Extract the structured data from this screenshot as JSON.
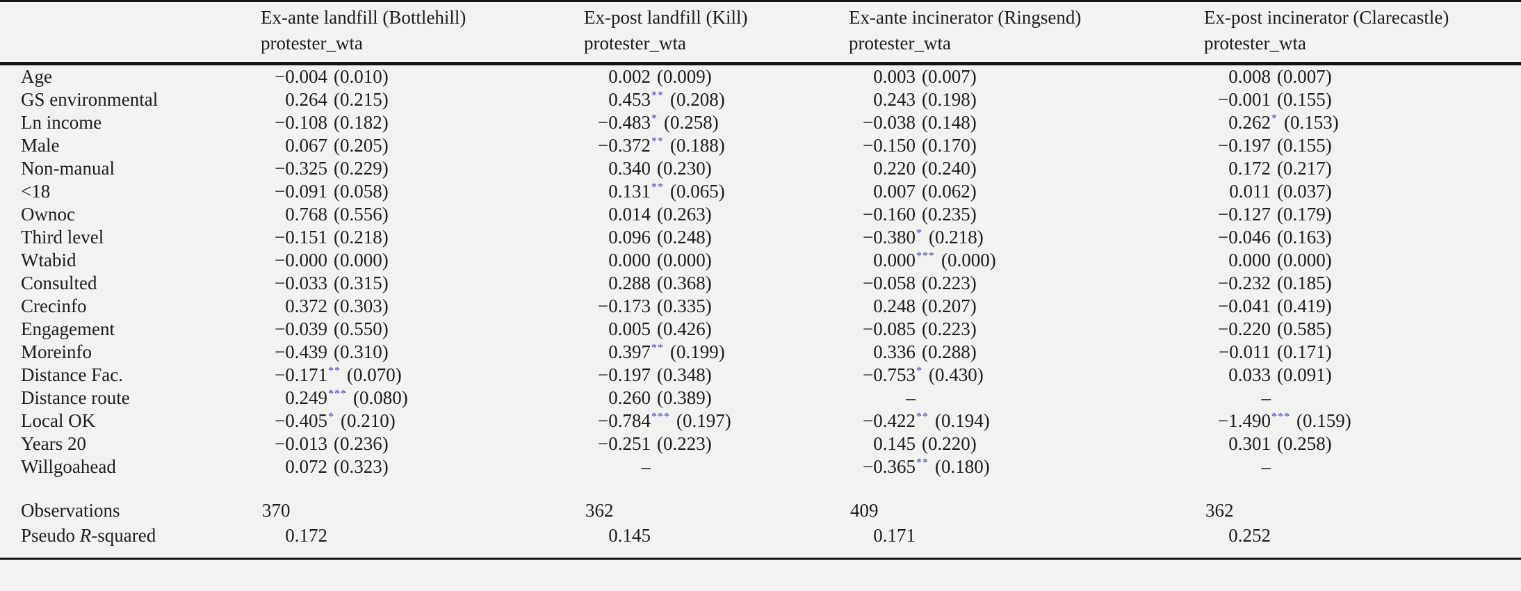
{
  "table": {
    "columns": [
      {
        "title": "Ex-ante landfill (Bottlehill)",
        "subtitle": "protester_wta"
      },
      {
        "title": "Ex-post landfill (Kill)",
        "subtitle": "protester_wta"
      },
      {
        "title": "Ex-ante incinerator (Ringsend)",
        "subtitle": "protester_wta"
      },
      {
        "title": "Ex-post incinerator (Clarecastle)",
        "subtitle": "protester_wta"
      }
    ],
    "rows": [
      {
        "label": "Age",
        "cells": [
          {
            "coef": "−0.004",
            "stars": "",
            "se": "(0.010)"
          },
          {
            "coef": "0.002",
            "stars": "",
            "se": "(0.009)"
          },
          {
            "coef": "0.003",
            "stars": "",
            "se": "(0.007)"
          },
          {
            "coef": "0.008",
            "stars": "",
            "se": "(0.007)"
          }
        ]
      },
      {
        "label": "GS environmental",
        "cells": [
          {
            "coef": "0.264",
            "stars": "",
            "se": "(0.215)"
          },
          {
            "coef": "0.453",
            "stars": "**",
            "se": "(0.208)"
          },
          {
            "coef": "0.243",
            "stars": "",
            "se": "(0.198)"
          },
          {
            "coef": "−0.001",
            "stars": "",
            "se": "(0.155)"
          }
        ]
      },
      {
        "label": "Ln income",
        "cells": [
          {
            "coef": "−0.108",
            "stars": "",
            "se": "(0.182)"
          },
          {
            "coef": "−0.483",
            "stars": "*",
            "se": "(0.258)"
          },
          {
            "coef": "−0.038",
            "stars": "",
            "se": "(0.148)"
          },
          {
            "coef": "0.262",
            "stars": "*",
            "se": "(0.153)"
          }
        ]
      },
      {
        "label": "Male",
        "cells": [
          {
            "coef": "0.067",
            "stars": "",
            "se": "(0.205)"
          },
          {
            "coef": "−0.372",
            "stars": "**",
            "se": "(0.188)"
          },
          {
            "coef": "−0.150",
            "stars": "",
            "se": "(0.170)"
          },
          {
            "coef": "−0.197",
            "stars": "",
            "se": "(0.155)"
          }
        ]
      },
      {
        "label": "Non-manual",
        "cells": [
          {
            "coef": "−0.325",
            "stars": "",
            "se": "(0.229)"
          },
          {
            "coef": "0.340",
            "stars": "",
            "se": "(0.230)"
          },
          {
            "coef": "0.220",
            "stars": "",
            "se": "(0.240)"
          },
          {
            "coef": "0.172",
            "stars": "",
            "se": "(0.217)"
          }
        ]
      },
      {
        "label": "<18",
        "cells": [
          {
            "coef": "−0.091",
            "stars": "",
            "se": "(0.058)"
          },
          {
            "coef": "0.131",
            "stars": "**",
            "se": "(0.065)"
          },
          {
            "coef": "0.007",
            "stars": "",
            "se": "(0.062)"
          },
          {
            "coef": "0.011",
            "stars": "",
            "se": "(0.037)"
          }
        ]
      },
      {
        "label": "Ownoc",
        "cells": [
          {
            "coef": "0.768",
            "stars": "",
            "se": "(0.556)"
          },
          {
            "coef": "0.014",
            "stars": "",
            "se": "(0.263)"
          },
          {
            "coef": "−0.160",
            "stars": "",
            "se": "(0.235)"
          },
          {
            "coef": "−0.127",
            "stars": "",
            "se": "(0.179)"
          }
        ]
      },
      {
        "label": "Third level",
        "cells": [
          {
            "coef": "−0.151",
            "stars": "",
            "se": "(0.218)"
          },
          {
            "coef": "0.096",
            "stars": "",
            "se": "(0.248)"
          },
          {
            "coef": "−0.380",
            "stars": "*",
            "se": "(0.218)"
          },
          {
            "coef": "−0.046",
            "stars": "",
            "se": "(0.163)"
          }
        ]
      },
      {
        "label": "Wtabid",
        "cells": [
          {
            "coef": "−0.000",
            "stars": "",
            "se": "(0.000)"
          },
          {
            "coef": "0.000",
            "stars": "",
            "se": "(0.000)"
          },
          {
            "coef": "0.000",
            "stars": "***",
            "se": "(0.000)"
          },
          {
            "coef": "0.000",
            "stars": "",
            "se": "(0.000)"
          }
        ]
      },
      {
        "label": "Consulted",
        "cells": [
          {
            "coef": "−0.033",
            "stars": "",
            "se": "(0.315)"
          },
          {
            "coef": "0.288",
            "stars": "",
            "se": "(0.368)"
          },
          {
            "coef": "−0.058",
            "stars": "",
            "se": "(0.223)"
          },
          {
            "coef": "−0.232",
            "stars": "",
            "se": "(0.185)"
          }
        ]
      },
      {
        "label": "Crecinfo",
        "cells": [
          {
            "coef": "0.372",
            "stars": "",
            "se": "(0.303)"
          },
          {
            "coef": "−0.173",
            "stars": "",
            "se": "(0.335)"
          },
          {
            "coef": "0.248",
            "stars": "",
            "se": "(0.207)"
          },
          {
            "coef": "−0.041",
            "stars": "",
            "se": "(0.419)"
          }
        ]
      },
      {
        "label": "Engagement",
        "cells": [
          {
            "coef": "−0.039",
            "stars": "",
            "se": "(0.550)"
          },
          {
            "coef": "0.005",
            "stars": "",
            "se": "(0.426)"
          },
          {
            "coef": "−0.085",
            "stars": "",
            "se": "(0.223)"
          },
          {
            "coef": "−0.220",
            "stars": "",
            "se": "(0.585)"
          }
        ]
      },
      {
        "label": "Moreinfo",
        "cells": [
          {
            "coef": "−0.439",
            "stars": "",
            "se": "(0.310)"
          },
          {
            "coef": "0.397",
            "stars": "**",
            "se": "(0.199)"
          },
          {
            "coef": "0.336",
            "stars": "",
            "se": "(0.288)"
          },
          {
            "coef": "−0.011",
            "stars": "",
            "se": "(0.171)"
          }
        ]
      },
      {
        "label": "Distance Fac.",
        "cells": [
          {
            "coef": "−0.171",
            "stars": "**",
            "se": "(0.070)"
          },
          {
            "coef": "−0.197",
            "stars": "",
            "se": "(0.348)"
          },
          {
            "coef": "−0.753",
            "stars": "*",
            "se": "(0.430)"
          },
          {
            "coef": "0.033",
            "stars": "",
            "se": "(0.091)"
          }
        ]
      },
      {
        "label": "Distance route",
        "cells": [
          {
            "coef": "0.249",
            "stars": "***",
            "se": "(0.080)"
          },
          {
            "coef": "0.260",
            "stars": "",
            "se": "(0.389)"
          },
          {
            "coef": "–",
            "stars": "",
            "se": ""
          },
          {
            "coef": "–",
            "stars": "",
            "se": ""
          }
        ]
      },
      {
        "label": "Local OK",
        "cells": [
          {
            "coef": "−0.405",
            "stars": "*",
            "se": "(0.210)"
          },
          {
            "coef": "−0.784",
            "stars": "***",
            "se": "(0.197)"
          },
          {
            "coef": "−0.422",
            "stars": "**",
            "se": "(0.194)"
          },
          {
            "coef": "−1.490",
            "stars": "***",
            "se": "(0.159)"
          }
        ]
      },
      {
        "label": "Years 20",
        "cells": [
          {
            "coef": "−0.013",
            "stars": "",
            "se": "(0.236)"
          },
          {
            "coef": "−0.251",
            "stars": "",
            "se": "(0.223)"
          },
          {
            "coef": "0.145",
            "stars": "",
            "se": "(0.220)"
          },
          {
            "coef": "0.301",
            "stars": "",
            "se": "(0.258)"
          }
        ]
      },
      {
        "label": "Willgoahead",
        "cells": [
          {
            "coef": "0.072",
            "stars": "",
            "se": "(0.323)"
          },
          {
            "coef": "–",
            "stars": "",
            "se": ""
          },
          {
            "coef": "−0.365",
            "stars": "**",
            "se": "(0.180)"
          },
          {
            "coef": "–",
            "stars": "",
            "se": ""
          }
        ]
      }
    ],
    "footer": {
      "observations": {
        "label": "Observations",
        "values": [
          "370",
          "362",
          "409",
          "362"
        ]
      },
      "pseudo_r_squared": {
        "label_prefix": "Pseudo ",
        "label_italic": "R",
        "label_suffix": "-squared",
        "values": [
          "0.172",
          "0.145",
          "0.171",
          "0.252"
        ]
      }
    },
    "colors": {
      "background": "#f2f2f0",
      "text": "#1d1d1d",
      "rule": "#151515",
      "significance_star": "#3e3ead"
    }
  }
}
